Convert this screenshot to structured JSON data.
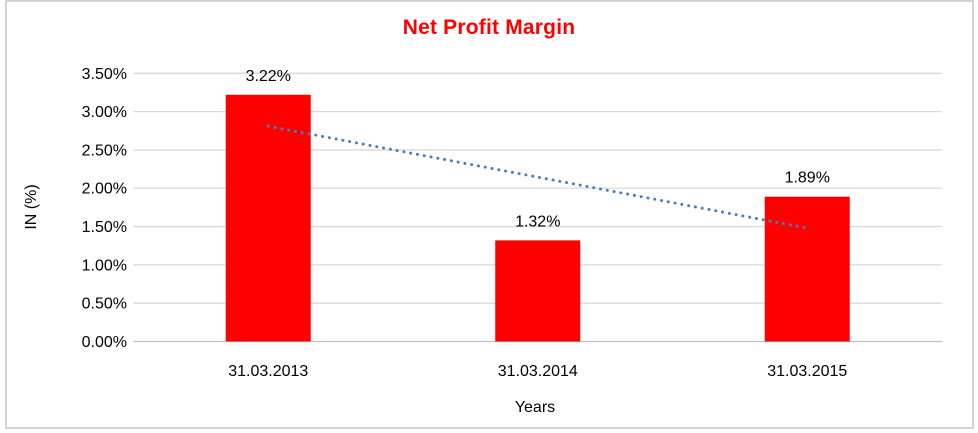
{
  "chart": {
    "title": "Net Profit Margin",
    "y_axis_title": "IN (%)",
    "x_axis_title": "Years"
  },
  "chart_data": {
    "type": "bar",
    "title": "Net Profit Margin",
    "xlabel": "Years",
    "ylabel": "IN (%)",
    "categories": [
      "31.03.2013",
      "31.03.2014",
      "31.03.2015"
    ],
    "values": [
      3.22,
      1.32,
      1.89
    ],
    "data_labels": [
      "3.22%",
      "1.32%",
      "1.89%"
    ],
    "ylim": [
      0,
      3.5
    ],
    "y_tick_step": 0.5,
    "y_tick_labels": [
      "0.00%",
      "0.50%",
      "1.00%",
      "1.50%",
      "2.00%",
      "2.50%",
      "3.00%",
      "3.50%"
    ],
    "grid": "horizontal-on",
    "legend_position": "none",
    "colors": {
      "bar": "#ff0000",
      "title": "#ff0000",
      "gridline": "#d9d9d9",
      "baseline": "#bfbfbf",
      "text": "#000000",
      "trendline": "#4a7ebb",
      "frame_border": "#d4d4d4"
    },
    "trendline": {
      "type": "linear",
      "style": "dotted",
      "start_value": 2.81,
      "end_value": 1.48
    }
  }
}
